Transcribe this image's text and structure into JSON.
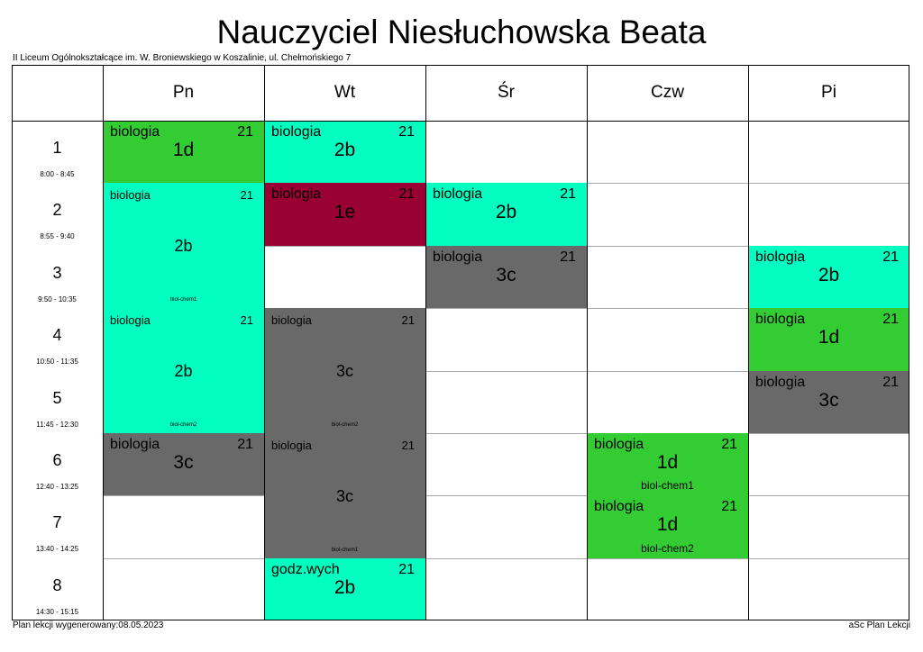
{
  "title": "Nauczyciel Niesłuchowska Beata",
  "school": "II Liceum Ogólnokształcące im. W. Broniewskiego w Koszalinie, ul. Chełmońskiego 7",
  "days": [
    "Pn",
    "Wt",
    "Śr",
    "Czw",
    "Pi"
  ],
  "periods": [
    {
      "num": "1",
      "time": "8:00 - 8:45"
    },
    {
      "num": "2",
      "time": "8:55 - 9:40"
    },
    {
      "num": "3",
      "time": "9:50 - 10:35"
    },
    {
      "num": "4",
      "time": "10:50 - 11:35"
    },
    {
      "num": "5",
      "time": "11:45 - 12:30"
    },
    {
      "num": "6",
      "time": "12:40 - 13:25"
    },
    {
      "num": "7",
      "time": "13:40 - 14:25"
    },
    {
      "num": "8",
      "time": "14:30 - 15:15"
    }
  ],
  "colors": {
    "cyan": "#00ffc0",
    "green": "#33cc33",
    "gray": "#696969",
    "crimson": "#990033"
  },
  "lessons": [
    {
      "day": 0,
      "period": 0,
      "span": 1,
      "subject": "biologia",
      "room": "21",
      "class": "1d",
      "group": "",
      "color": "green"
    },
    {
      "day": 0,
      "period": 1,
      "span": 2,
      "subject": "biologia",
      "room": "21",
      "class": "2b",
      "group": "biol-chem1",
      "color": "cyan"
    },
    {
      "day": 0,
      "period": 3,
      "span": 2,
      "subject": "biologia",
      "room": "21",
      "class": "2b",
      "group": "biol-chem2",
      "color": "cyan"
    },
    {
      "day": 0,
      "period": 5,
      "span": 1,
      "subject": "biologia",
      "room": "21",
      "class": "3c",
      "group": "",
      "color": "gray"
    },
    {
      "day": 1,
      "period": 0,
      "span": 1,
      "subject": "biologia",
      "room": "21",
      "class": "2b",
      "group": "",
      "color": "cyan"
    },
    {
      "day": 1,
      "period": 1,
      "span": 1,
      "subject": "biologia",
      "room": "21",
      "class": "1e",
      "group": "",
      "color": "crimson"
    },
    {
      "day": 1,
      "period": 3,
      "span": 2,
      "subject": "biologia",
      "room": "21",
      "class": "3c",
      "group": "biol-chem2",
      "color": "gray"
    },
    {
      "day": 1,
      "period": 5,
      "span": 2,
      "subject": "biologia",
      "room": "21",
      "class": "3c",
      "group": "biol-chem1",
      "color": "gray"
    },
    {
      "day": 1,
      "period": 7,
      "span": 1,
      "subject": "godz.wych",
      "room": "21",
      "class": "2b",
      "group": "",
      "color": "cyan"
    },
    {
      "day": 2,
      "period": 1,
      "span": 1,
      "subject": "biologia",
      "room": "21",
      "class": "2b",
      "group": "",
      "color": "cyan"
    },
    {
      "day": 2,
      "period": 2,
      "span": 1,
      "subject": "biologia",
      "room": "21",
      "class": "3c",
      "group": "",
      "color": "gray"
    },
    {
      "day": 3,
      "period": 5,
      "span": 1,
      "subject": "biologia",
      "room": "21",
      "class": "1d",
      "group": "biol-chem1",
      "color": "green"
    },
    {
      "day": 3,
      "period": 6,
      "span": 1,
      "subject": "biologia",
      "room": "21",
      "class": "1d",
      "group": "biol-chem2",
      "color": "green"
    },
    {
      "day": 4,
      "period": 2,
      "span": 1,
      "subject": "biologia",
      "room": "21",
      "class": "2b",
      "group": "",
      "color": "cyan"
    },
    {
      "day": 4,
      "period": 3,
      "span": 1,
      "subject": "biologia",
      "room": "21",
      "class": "1d",
      "group": "",
      "color": "green"
    },
    {
      "day": 4,
      "period": 4,
      "span": 1,
      "subject": "biologia",
      "room": "21",
      "class": "3c",
      "group": "",
      "color": "gray"
    }
  ],
  "footer": {
    "generated": "Plan lekcji wygenerowany:08.05.2023",
    "brand": "aSc Plan Lekcji"
  }
}
